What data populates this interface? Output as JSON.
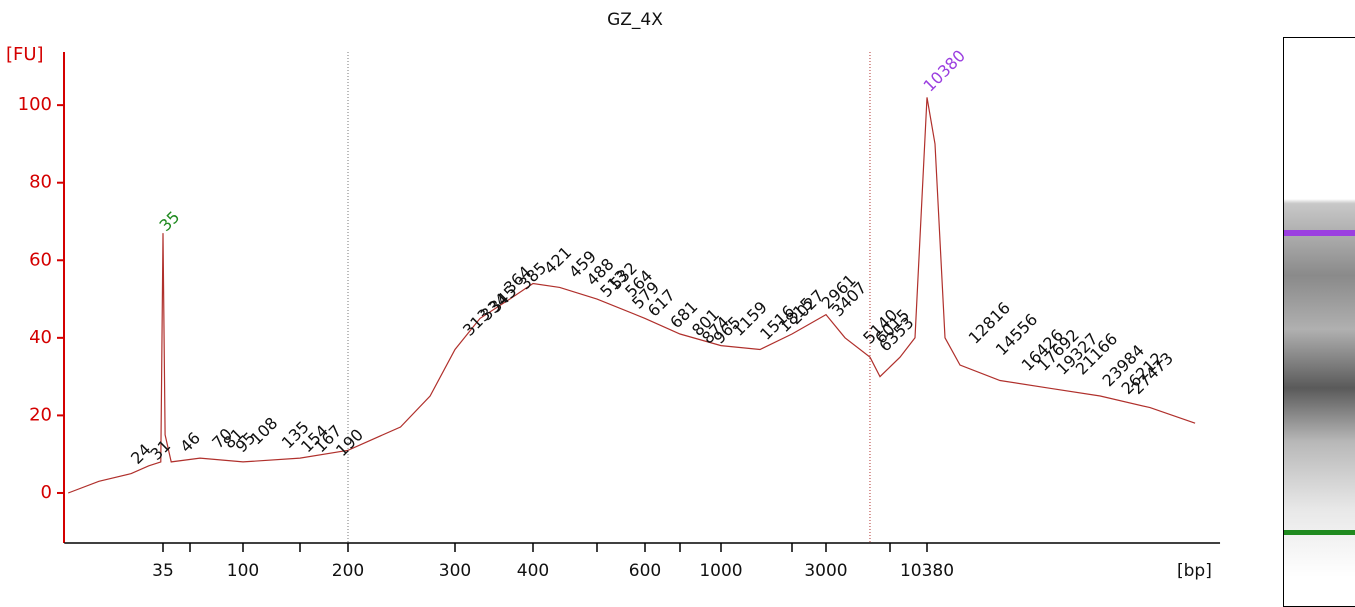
{
  "chart_data": {
    "type": "line",
    "title": "GZ_4X",
    "ylabel": "[FU]",
    "xlabel": "[bp]",
    "color": "#b0302c",
    "axis_color": "#d40000",
    "ylim": [
      -12.9,
      113.7
    ],
    "yticks": [
      0,
      20,
      40,
      60,
      80,
      100
    ],
    "xlim": [
      9.5,
      40900
    ],
    "xticks": [
      35,
      100,
      200,
      300,
      400,
      600,
      1000,
      3000,
      10380
    ],
    "xticks_minor": [
      50,
      150,
      500,
      700,
      2000,
      7000
    ],
    "region_bounds": [
      200,
      5370
    ],
    "x": [
      10,
      15,
      23,
      29,
      34,
      35,
      36,
      39,
      57,
      100,
      150,
      200,
      244,
      273,
      300,
      329,
      367,
      400,
      439,
      500,
      600,
      700,
      1000,
      1463,
      2000,
      3000,
      3859,
      5370,
      6133,
      7787,
      9139,
      10380,
      10776,
      11292,
      12113,
      14607,
      18469,
      23349,
      29470,
      36400
    ],
    "values": [
      0,
      3,
      5,
      7,
      8,
      67,
      15,
      8,
      9,
      8,
      9,
      11,
      17,
      25,
      37,
      45,
      50,
      54,
      53,
      50,
      45,
      41,
      38,
      37,
      41,
      46,
      40,
      35,
      30,
      35,
      40,
      102,
      90,
      40,
      33,
      29,
      27,
      25,
      22,
      18
    ],
    "peaks": [
      {
        "bp": 24,
        "fu": 7
      },
      {
        "bp": 31,
        "fu": 8
      },
      {
        "bp": 35,
        "fu": 67,
        "color": "#1f8a1f"
      },
      {
        "bp": 46,
        "fu": 10
      },
      {
        "bp": 70,
        "fu": 11
      },
      {
        "bp": 81,
        "fu": 11
      },
      {
        "bp": 95,
        "fu": 10
      },
      {
        "bp": 108,
        "fu": 12
      },
      {
        "bp": 135,
        "fu": 11
      },
      {
        "bp": 154,
        "fu": 10
      },
      {
        "bp": 167,
        "fu": 10
      },
      {
        "bp": 190,
        "fu": 9
      },
      {
        "bp": 313,
        "fu": 40
      },
      {
        "bp": 334,
        "fu": 44
      },
      {
        "bp": 345,
        "fu": 46
      },
      {
        "bp": 364,
        "fu": 51
      },
      {
        "bp": 385,
        "fu": 52
      },
      {
        "bp": 421,
        "fu": 56
      },
      {
        "bp": 459,
        "fu": 55
      },
      {
        "bp": 488,
        "fu": 53
      },
      {
        "bp": 513,
        "fu": 50
      },
      {
        "bp": 532,
        "fu": 52
      },
      {
        "bp": 564,
        "fu": 50
      },
      {
        "bp": 579,
        "fu": 47
      },
      {
        "bp": 617,
        "fu": 45
      },
      {
        "bp": 681,
        "fu": 42
      },
      {
        "bp": 801,
        "fu": 40
      },
      {
        "bp": 874,
        "fu": 38
      },
      {
        "bp": 965,
        "fu": 38
      },
      {
        "bp": 1159,
        "fu": 40
      },
      {
        "bp": 1516,
        "fu": 39
      },
      {
        "bp": 1815,
        "fu": 41
      },
      {
        "bp": 2027,
        "fu": 43
      },
      {
        "bp": 2961,
        "fu": 47
      },
      {
        "bp": 3407,
        "fu": 45
      },
      {
        "bp": 5140,
        "fu": 38
      },
      {
        "bp": 6015,
        "fu": 38
      },
      {
        "bp": 6353,
        "fu": 36
      },
      {
        "bp": 10380,
        "fu": 103,
        "color": "#9b3fe0"
      },
      {
        "bp": 12816,
        "fu": 38
      },
      {
        "bp": 14556,
        "fu": 35
      },
      {
        "bp": 16426,
        "fu": 31
      },
      {
        "bp": 17692,
        "fu": 31
      },
      {
        "bp": 19327,
        "fu": 30
      },
      {
        "bp": 21166,
        "fu": 30
      },
      {
        "bp": 23984,
        "fu": 27
      },
      {
        "bp": 26212,
        "fu": 25
      },
      {
        "bp": 27473,
        "fu": 25
      }
    ]
  }
}
